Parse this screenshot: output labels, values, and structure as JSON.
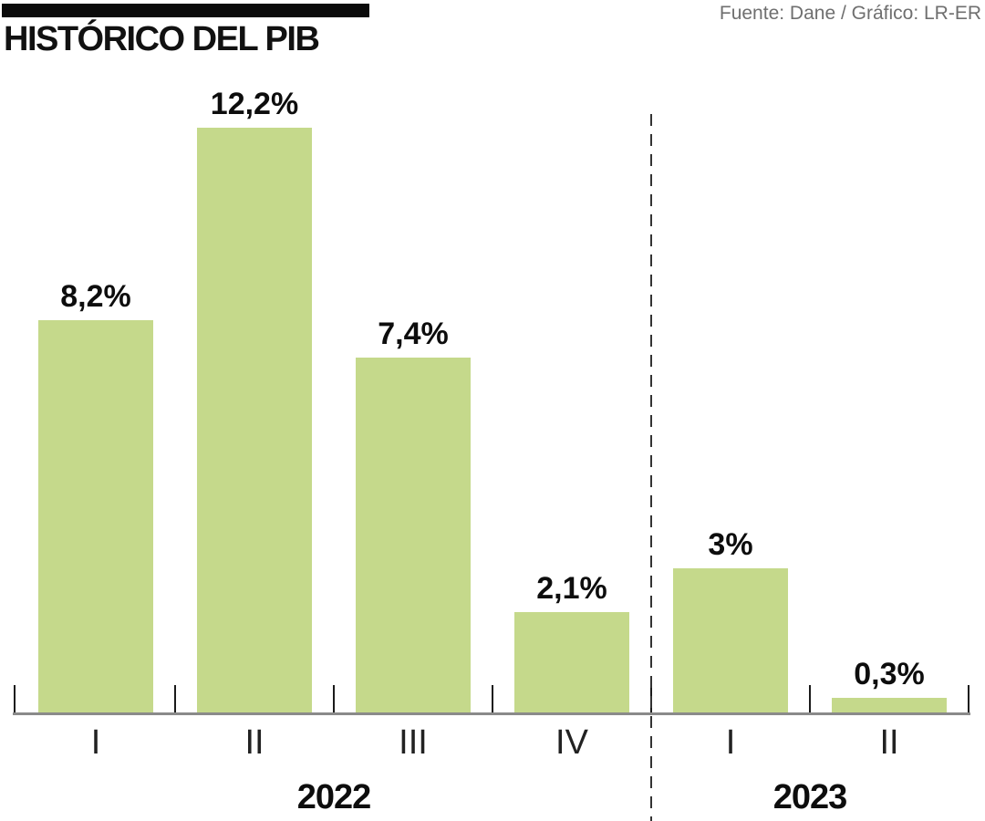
{
  "header": {
    "title": "HISTÓRICO DEL PIB",
    "source": "Fuente: Dane / Gráfico: LR-ER"
  },
  "chart_data": {
    "type": "bar",
    "title": "HISTÓRICO DEL PIB",
    "source": "Fuente: Dane / Gráfico: LR-ER",
    "unit": "%",
    "categories": [
      "I",
      "II",
      "III",
      "IV",
      "I",
      "II"
    ],
    "values": [
      8.2,
      12.2,
      7.4,
      2.1,
      3.0,
      0.3
    ],
    "value_labels": [
      "8,2%",
      "12,2%",
      "7,4%",
      "2,1%",
      "3%",
      "0,3%"
    ],
    "groups": [
      {
        "label": "2022",
        "start": 0,
        "end": 3
      },
      {
        "label": "2023",
        "start": 4,
        "end": 5
      }
    ],
    "separator_between": [
      3,
      4
    ],
    "bar_color": "#c5d98b",
    "ylim": [
      0,
      13
    ],
    "grid": false,
    "legend": false
  }
}
